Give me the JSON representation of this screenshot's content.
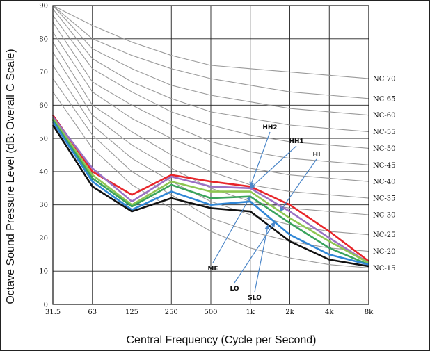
{
  "chart_data": {
    "type": "line",
    "xlabel": "Central Frequency (Cycle per Second)",
    "ylabel": "Octave Sound Pressure Level (dB: Overall C Scale)",
    "categories": [
      "31.5",
      "63",
      "125",
      "250",
      "500",
      "1k",
      "2k",
      "4k",
      "8k"
    ],
    "ylim": [
      0,
      90
    ],
    "yticks": [
      0,
      10,
      20,
      30,
      40,
      50,
      60,
      70,
      80,
      90
    ],
    "grid": true,
    "nc_curves": [
      {
        "name": "NC-70",
        "values": [
          90,
          84,
          79,
          75,
          72,
          71,
          70,
          69,
          68
        ]
      },
      {
        "name": "NC-65",
        "values": [
          90,
          80,
          75,
          71,
          68,
          66,
          64,
          63,
          62
        ]
      },
      {
        "name": "NC-60",
        "values": [
          90,
          77,
          71,
          66,
          63,
          61,
          59,
          58,
          57
        ]
      },
      {
        "name": "NC-55",
        "values": [
          89,
          74,
          67,
          62,
          58,
          56,
          54,
          53,
          52
        ]
      },
      {
        "name": "NC-50",
        "values": [
          87,
          71,
          64,
          58,
          54,
          51,
          49,
          48,
          47
        ]
      },
      {
        "name": "NC-45",
        "values": [
          85,
          67,
          60,
          54,
          49,
          46,
          44,
          43,
          42
        ]
      },
      {
        "name": "NC-40",
        "values": [
          82,
          64,
          56,
          50,
          45,
          41,
          39,
          38,
          37
        ]
      },
      {
        "name": "NC-35",
        "values": [
          79,
          60,
          52,
          45,
          40,
          36,
          34,
          33,
          32
        ]
      },
      {
        "name": "NC-30",
        "values": [
          76,
          57,
          48,
          41,
          35,
          31,
          29,
          28,
          27
        ]
      },
      {
        "name": "NC-25",
        "values": [
          72,
          54,
          44,
          37,
          31,
          27,
          24,
          22,
          21
        ]
      },
      {
        "name": "NC-20",
        "values": [
          68,
          51,
          40,
          33,
          26,
          22,
          19,
          17,
          16
        ]
      },
      {
        "name": "NC-15",
        "values": [
          64,
          47,
          36,
          29,
          22,
          17,
          14,
          12,
          11
        ]
      }
    ],
    "series": [
      {
        "name": "HH2",
        "color": "#e8252a",
        "values": [
          57,
          40,
          33,
          39,
          37,
          35.5,
          30,
          22,
          13
        ]
      },
      {
        "name": "HH1",
        "color": "#9b72c4",
        "values": [
          56.5,
          41,
          31,
          38.5,
          35.5,
          35,
          28,
          20,
          12.5
        ]
      },
      {
        "name": "HI",
        "color": "#8ec653",
        "values": [
          56,
          39,
          30,
          37,
          34,
          34,
          26,
          19,
          12.5
        ]
      },
      {
        "name": "ME",
        "color": "#3aa35c",
        "values": [
          55.5,
          38,
          29.5,
          36,
          32,
          32.5,
          24.5,
          17,
          12
        ]
      },
      {
        "name": "LO",
        "color": "#2f86d6",
        "values": [
          55,
          37,
          28.5,
          34,
          30,
          31,
          21,
          15,
          12
        ]
      },
      {
        "name": "SLO",
        "color": "#111111",
        "values": [
          54,
          35.5,
          28,
          32,
          29,
          28,
          19,
          13.5,
          11.5
        ]
      }
    ],
    "annotations": [
      {
        "text": "HH2",
        "target_series": "HH2",
        "target_x": "1k"
      },
      {
        "text": "HH1",
        "target_series": "HH1",
        "target_x": "1k"
      },
      {
        "text": "HI",
        "target_series": "HI",
        "target_x": "2k"
      },
      {
        "text": "ME",
        "target_series": "ME",
        "target_x": "1k"
      },
      {
        "text": "LO",
        "target_series": "LO",
        "target_x": "2k"
      },
      {
        "text": "SLO",
        "target_series": "SLO",
        "target_x": "2k"
      }
    ]
  }
}
